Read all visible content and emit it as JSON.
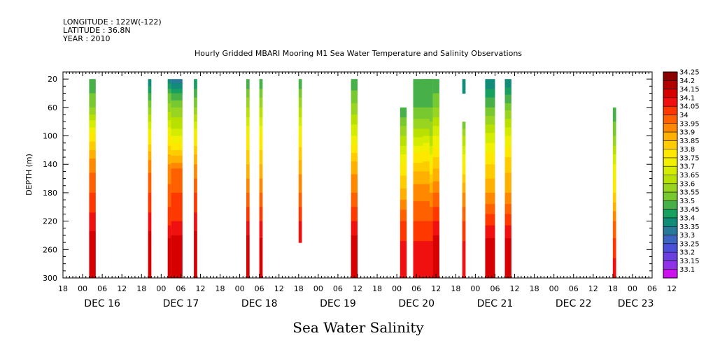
{
  "header": {
    "longitude": "LONGITUDE : 122W(-122)",
    "latitude": "LATITUDE : 36.8N",
    "year": "YEAR : 2010",
    "title": "Hourly Gridded MBARI Mooring M1 Sea Water Temperature and Salinity Observations"
  },
  "footer_title": "Sea Water Salinity",
  "chart_data": {
    "type": "heatmap",
    "title": "Hourly Gridded MBARI Mooring M1 Sea Water Temperature and Salinity Observations",
    "xlabel": "",
    "ylabel": "DEPTH (m)",
    "variable": "Sea Water Salinity",
    "ylim": [
      300,
      10
    ],
    "y_inverted": true,
    "yticks": [
      20,
      60,
      100,
      140,
      180,
      220,
      260,
      300
    ],
    "xlim_hours": [
      0,
      180
    ],
    "xtick_labels": [
      "18",
      "00",
      "06",
      "12",
      "18",
      "00",
      "06",
      "12",
      "18",
      "00",
      "06",
      "12",
      "18",
      "00",
      "06",
      "12",
      "18",
      "00",
      "06",
      "12",
      "18",
      "00",
      "06",
      "12",
      "18",
      "00",
      "06",
      "12",
      "18",
      "00",
      "06",
      "12"
    ],
    "day_labels": [
      {
        "label": "DEC 16",
        "hour": 12
      },
      {
        "label": "DEC 17",
        "hour": 36
      },
      {
        "label": "DEC 18",
        "hour": 60
      },
      {
        "label": "DEC 19",
        "hour": 84
      },
      {
        "label": "DEC 20",
        "hour": 108
      },
      {
        "label": "DEC 21",
        "hour": 132
      },
      {
        "label": "DEC 22",
        "hour": 156
      },
      {
        "label": "DEC 23",
        "hour": 175
      }
    ],
    "colorbar": {
      "levels": [
        "34.25",
        "34.2",
        "34.15",
        "34.1",
        "34.05",
        "34",
        "33.95",
        "33.9",
        "33.85",
        "33.8",
        "33.75",
        "33.7",
        "33.65",
        "33.6",
        "33.55",
        "33.5",
        "33.45",
        "33.4",
        "33.35",
        "33.3",
        "33.25",
        "33.2",
        "33.15",
        "33.1"
      ],
      "colors": [
        "#8b0000",
        "#b00000",
        "#d60000",
        "#f01010",
        "#ff3800",
        "#ff6000",
        "#ff8800",
        "#ffb000",
        "#ffcc00",
        "#ffe800",
        "#f0f000",
        "#d4ec00",
        "#b8e000",
        "#98d420",
        "#78c830",
        "#48b048",
        "#18a060",
        "#108c78",
        "#287898",
        "#3c64c0",
        "#4c50d8",
        "#6c40e0",
        "#9030e8",
        "#cc10ee"
      ]
    },
    "profiles": [
      {
        "t": 8,
        "w": 2,
        "top": 20,
        "bottom": 300,
        "z": [
          20,
          60,
          100,
          140,
          180,
          220,
          260,
          300
        ],
        "s": [
          33.5,
          33.6,
          33.82,
          33.98,
          34.05,
          34.12,
          34.2,
          34.15
        ]
      },
      {
        "t": 26,
        "w": 1,
        "top": 20,
        "bottom": 300,
        "z": [
          20,
          60,
          100,
          140,
          180,
          220,
          260,
          300
        ],
        "s": [
          33.4,
          33.6,
          33.8,
          33.98,
          34.05,
          34.12,
          34.2,
          34.15
        ]
      },
      {
        "t": 32,
        "w": 1,
        "top": 20,
        "bottom": 300,
        "z": [
          20,
          40,
          60,
          100,
          140,
          180,
          220,
          260,
          300
        ],
        "s": [
          33.4,
          33.55,
          33.62,
          33.8,
          33.95,
          34.02,
          34.08,
          34.2,
          34.18
        ]
      },
      {
        "t": 33,
        "w": 3.5,
        "top": 20,
        "bottom": 300,
        "z": [
          20,
          40,
          60,
          90,
          120,
          150,
          180,
          220,
          260,
          300
        ],
        "s": [
          33.35,
          33.5,
          33.6,
          33.7,
          33.85,
          34.02,
          34.05,
          34.1,
          34.2,
          34.18
        ]
      },
      {
        "t": 40,
        "w": 1,
        "top": 20,
        "bottom": 300,
        "z": [
          20,
          60,
          100,
          140,
          180,
          220,
          260,
          300
        ],
        "s": [
          33.45,
          33.6,
          33.8,
          33.95,
          34.05,
          34.12,
          34.2,
          34.15
        ]
      },
      {
        "t": 56,
        "w": 1,
        "top": 20,
        "bottom": 300,
        "z": [
          20,
          60,
          100,
          140,
          180,
          220,
          260,
          300
        ],
        "s": [
          33.5,
          33.65,
          33.8,
          33.9,
          34.0,
          34.1,
          34.2,
          34.15
        ]
      },
      {
        "t": 60,
        "w": 1,
        "top": 20,
        "bottom": 300,
        "z": [
          20,
          60,
          100,
          140,
          180,
          220,
          260,
          300
        ],
        "s": [
          33.5,
          33.65,
          33.8,
          33.9,
          34.0,
          34.1,
          34.18,
          34.15
        ]
      },
      {
        "t": 72,
        "w": 1,
        "top": 20,
        "bottom": 250,
        "z": [
          20,
          60,
          100,
          140,
          180,
          220,
          250
        ],
        "s": [
          33.5,
          33.65,
          33.8,
          33.92,
          34.0,
          34.1,
          34.15
        ]
      },
      {
        "t": 88,
        "w": 2,
        "top": 20,
        "bottom": 300,
        "z": [
          20,
          60,
          100,
          140,
          180,
          220,
          260,
          300
        ],
        "s": [
          33.5,
          33.62,
          33.75,
          33.92,
          34.0,
          34.1,
          34.2,
          34.15
        ]
      },
      {
        "t": 103,
        "w": 2,
        "top": 60,
        "bottom": 300,
        "z": [
          60,
          100,
          140,
          180,
          220,
          260,
          300
        ],
        "s": [
          33.5,
          33.65,
          33.8,
          33.92,
          34.05,
          34.12,
          34.15
        ]
      },
      {
        "t": 107,
        "w": 6,
        "top": 20,
        "bottom": 300,
        "z": [
          20,
          60,
          90,
          120,
          150,
          180,
          220,
          260,
          300
        ],
        "s": [
          33.5,
          33.55,
          33.65,
          33.78,
          33.9,
          33.98,
          34.05,
          34.12,
          34.15
        ]
      },
      {
        "t": 110,
        "w": 3,
        "top": 20,
        "bottom": 300,
        "z": [
          20,
          60,
          90,
          120,
          150,
          180,
          220,
          260,
          300
        ],
        "s": [
          33.5,
          33.55,
          33.65,
          33.8,
          33.9,
          33.98,
          34.05,
          34.12,
          34.15
        ]
      },
      {
        "t": 112,
        "w": 1,
        "top": 60,
        "bottom": 300,
        "z": [
          60,
          100,
          140,
          180,
          220,
          260,
          300
        ],
        "s": [
          33.55,
          33.65,
          33.8,
          33.95,
          34.05,
          34.12,
          34.15
        ]
      },
      {
        "t": 113,
        "w": 2,
        "top": 20,
        "bottom": 300,
        "z": [
          20,
          60,
          100,
          140,
          180,
          220,
          260,
          300
        ],
        "s": [
          33.5,
          33.6,
          33.75,
          33.88,
          34.0,
          34.1,
          34.2,
          34.15
        ]
      },
      {
        "t": 122,
        "w": 1,
        "top": 20,
        "bottom": 40,
        "z": [
          20,
          40
        ],
        "s": [
          33.4,
          33.45
        ]
      },
      {
        "t": 122,
        "w": 1,
        "top": 80,
        "bottom": 300,
        "z": [
          80,
          100,
          140,
          180,
          220,
          260,
          300
        ],
        "s": [
          33.55,
          33.65,
          33.8,
          33.95,
          34.05,
          34.12,
          34.15
        ]
      },
      {
        "t": 129,
        "w": 3,
        "top": 20,
        "bottom": 300,
        "z": [
          20,
          60,
          100,
          140,
          180,
          220,
          260,
          300
        ],
        "s": [
          33.4,
          33.55,
          33.72,
          33.85,
          33.95,
          34.08,
          34.2,
          34.15
        ]
      },
      {
        "t": 135,
        "w": 2,
        "top": 20,
        "bottom": 300,
        "z": [
          20,
          60,
          100,
          140,
          180,
          220,
          260,
          300
        ],
        "s": [
          33.4,
          33.58,
          33.75,
          33.88,
          33.95,
          34.08,
          34.2,
          34.15
        ]
      },
      {
        "t": 168,
        "w": 1,
        "top": 60,
        "bottom": 300,
        "z": [
          60,
          100,
          140,
          180,
          220,
          260,
          300
        ],
        "s": [
          33.5,
          33.6,
          33.75,
          33.85,
          34.0,
          34.08,
          34.15
        ]
      }
    ]
  }
}
